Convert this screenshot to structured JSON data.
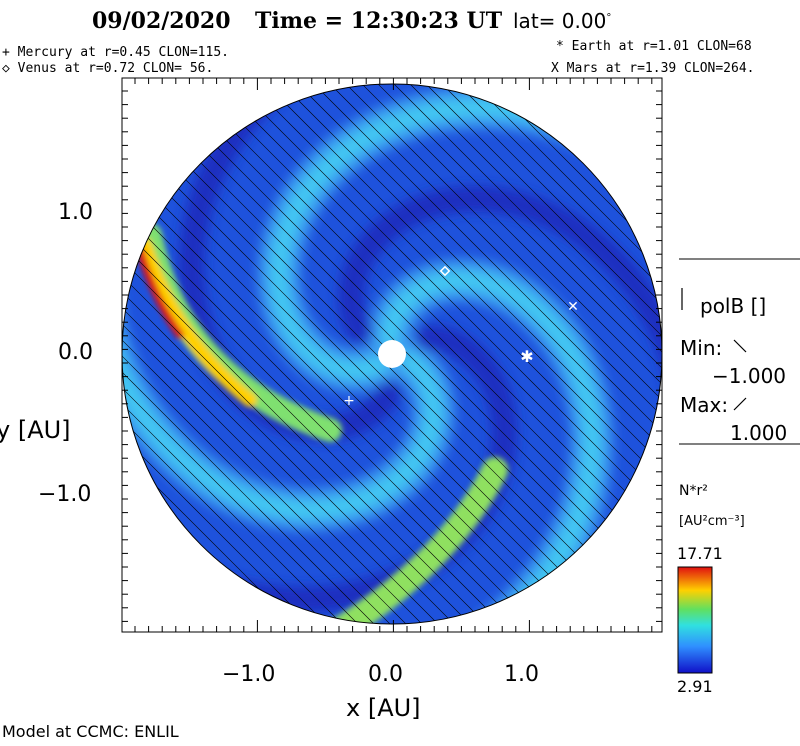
{
  "header": {
    "date": "09/02/2020",
    "time_label": "Time = 12:30:23 UT",
    "lat_label": "lat= 0.00",
    "lat_degree": "°"
  },
  "planets": {
    "mercury": "+ Mercury at r=0.45 CLON=115.",
    "venus": "◇ Venus at r=0.72 CLON= 56.",
    "earth": "* Earth at  r=1.01 CLON=68",
    "mars": "X Mars at r=1.39 CLON=264."
  },
  "axes": {
    "xlabel": "x [AU]",
    "ylabel": "y [AU]",
    "xticks": [
      "−1.0",
      "0.0",
      "1.0"
    ],
    "yticks": [
      "1.0",
      "0.0",
      "−1.0"
    ]
  },
  "polarity_legend": {
    "title": "polB []",
    "min_label": "Min:",
    "min_value": "−1.000",
    "max_label": "Max:",
    "max_value": "1.000"
  },
  "colorbar": {
    "title": "N*r²",
    "unit": "[AU²cm⁻³]",
    "max": "17.71",
    "min": "2.91"
  },
  "footer": {
    "credit": "Model at CCMC: ENLIL"
  },
  "colors": {
    "low": "#1a3cd6",
    "mid": "#2f7ee8",
    "high": "#e01010",
    "background": "#ffffff"
  }
}
